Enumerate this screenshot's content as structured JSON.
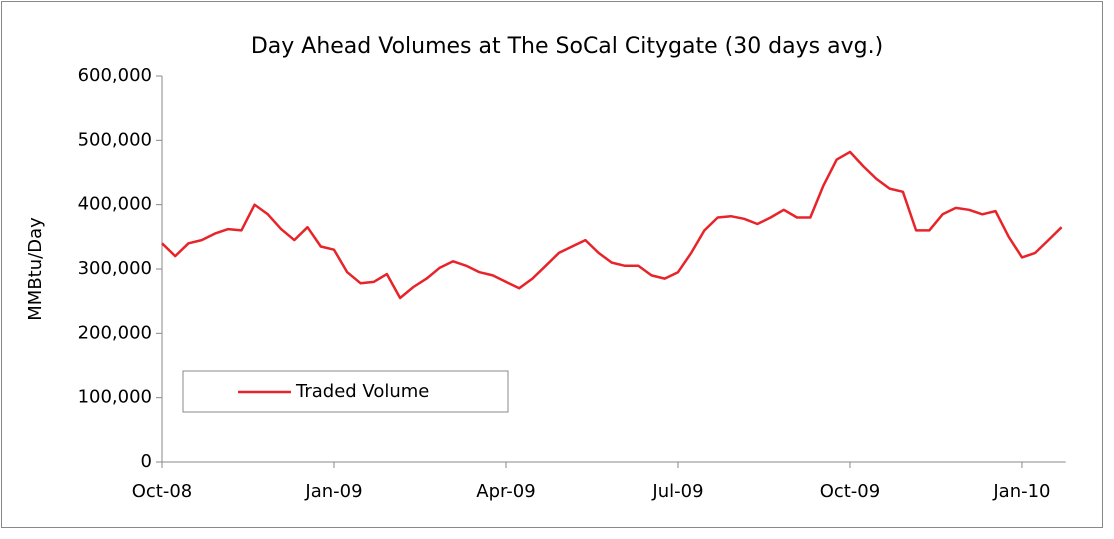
{
  "chart_data": {
    "type": "line",
    "title": "Day Ahead Volumes at The SoCal Citygate (30 days avg.)",
    "ylabel": "MMBtu/Day",
    "categories": [
      "Oct-08",
      null,
      null,
      null,
      null,
      null,
      null,
      null,
      null,
      null,
      null,
      null,
      null,
      "Jan-09",
      null,
      null,
      null,
      null,
      null,
      null,
      null,
      null,
      null,
      null,
      null,
      null,
      "Apr-09",
      null,
      null,
      null,
      null,
      null,
      null,
      null,
      null,
      null,
      null,
      null,
      null,
      "Jul-09",
      null,
      null,
      null,
      null,
      null,
      null,
      null,
      null,
      null,
      null,
      null,
      null,
      "Oct-09",
      null,
      null,
      null,
      null,
      null,
      null,
      null,
      null,
      null,
      null,
      null,
      null,
      "Jan-10",
      null,
      null,
      null
    ],
    "series": [
      {
        "name": "Traded Volume",
        "color": "#e8232a",
        "values": [
          340000,
          320000,
          340000,
          345000,
          355000,
          362000,
          360000,
          400000,
          385000,
          362000,
          345000,
          365000,
          335000,
          330000,
          295000,
          278000,
          280000,
          292000,
          255000,
          272000,
          285000,
          302000,
          312000,
          305000,
          295000,
          290000,
          280000,
          270000,
          285000,
          305000,
          325000,
          335000,
          345000,
          325000,
          310000,
          305000,
          305000,
          290000,
          285000,
          295000,
          325000,
          360000,
          380000,
          382000,
          378000,
          370000,
          380000,
          392000,
          380000,
          380000,
          430000,
          470000,
          482000,
          460000,
          440000,
          425000,
          420000,
          360000,
          360000,
          385000,
          395000,
          392000,
          385000,
          390000,
          350000,
          318000,
          325000,
          345000,
          365000
        ]
      }
    ],
    "ylim": [
      0,
      600000
    ],
    "yticks": [
      0,
      {
        "value": 100000,
        "label": "100,000"
      },
      {
        "value": 200000,
        "label": "200,000"
      },
      {
        "value": 300000,
        "label": "300,000"
      },
      {
        "value": 400000,
        "label": "400,000"
      },
      {
        "value": 500000,
        "label": "500,000"
      },
      {
        "value": 600000,
        "label": "600,000"
      }
    ],
    "legend": "lower left"
  }
}
